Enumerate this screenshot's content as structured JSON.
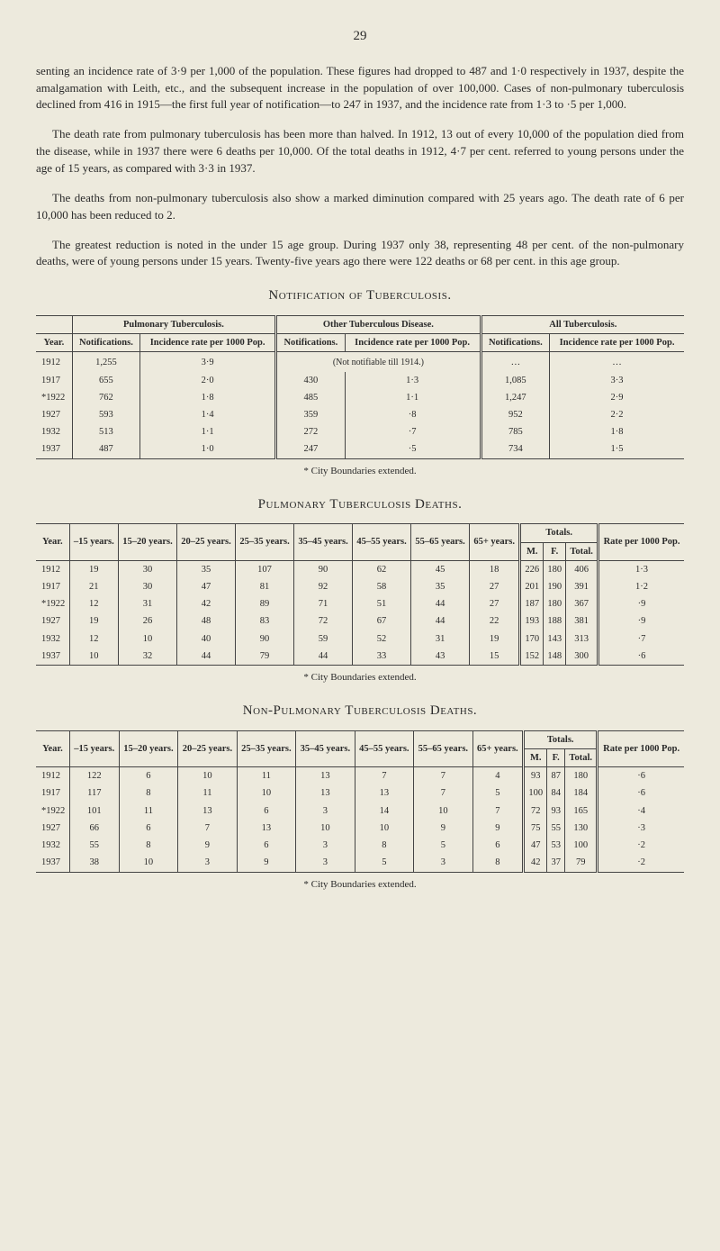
{
  "page_number": "29",
  "paragraphs": [
    "senting an incidence rate of 3·9 per 1,000 of the population. These figures had dropped to 487 and 1·0 respectively in 1937, despite the amalgamation with Leith, etc., and the subsequent increase in the population of over 100,000. Cases of non-pulmonary tuberculosis declined from 416 in 1915—the first full year of notification—to 247 in 1937, and the incidence rate from 1·3 to ·5 per 1,000.",
    "The death rate from pulmonary tuberculosis has been more than halved. In 1912, 13 out of every 10,000 of the population died from the disease, while in 1937 there were 6 deaths per 10,000. Of the total deaths in 1912, 4·7 per cent. referred to young persons under the age of 15 years, as compared with 3·3 in 1937.",
    "The deaths from non-pulmonary tuberculosis also show a marked diminution compared with 25 years ago. The death rate of 6 per 10,000 has been reduced to 2.",
    "The greatest reduction is noted in the under 15 age group. During 1937 only 38, representing 48 per cent. of the non-pulmonary deaths, were of young persons under 15 years. Twenty-five years ago there were 122 deaths or 68 per cent. in this age group."
  ],
  "table1": {
    "title": "Notification of Tuberculosis.",
    "group_headers": [
      "Pulmonary Tuberculosis.",
      "Other Tuberculous Disease.",
      "All Tuberculosis."
    ],
    "col_headers": [
      "Year.",
      "Notifications.",
      "Incidence rate per 1000 Pop.",
      "Notifications.",
      "Incidence rate per 1000 Pop.",
      "Notifications.",
      "Incidence rate per 1000 Pop."
    ],
    "not_notifiable": "(Not notifiable till 1914.)",
    "rows": [
      [
        "1912",
        "1,255",
        "3·9",
        "",
        "",
        "…",
        "…"
      ],
      [
        "1917",
        "655",
        "2·0",
        "430",
        "1·3",
        "1,085",
        "3·3"
      ],
      [
        "*1922",
        "762",
        "1·8",
        "485",
        "1·1",
        "1,247",
        "2·9"
      ],
      [
        "1927",
        "593",
        "1·4",
        "359",
        "·8",
        "952",
        "2·2"
      ],
      [
        "1932",
        "513",
        "1·1",
        "272",
        "·7",
        "785",
        "1·8"
      ],
      [
        "1937",
        "487",
        "1·0",
        "247",
        "·5",
        "734",
        "1·5"
      ]
    ],
    "footnote": "* City Boundaries extended."
  },
  "table2": {
    "title": "Pulmonary Tuberculosis Deaths.",
    "col_headers": [
      "Year.",
      "–15 years.",
      "15–20 years.",
      "20–25 years.",
      "25–35 years.",
      "35–45 years.",
      "45–55 years.",
      "55–65 years.",
      "65+ years."
    ],
    "totals_label": "Totals.",
    "totals_sub": [
      "M.",
      "F.",
      "Total."
    ],
    "rate_label": "Rate per 1000 Pop.",
    "rows": [
      [
        "1912",
        "19",
        "30",
        "35",
        "107",
        "90",
        "62",
        "45",
        "18",
        "226",
        "180",
        "406",
        "1·3"
      ],
      [
        "1917",
        "21",
        "30",
        "47",
        "81",
        "92",
        "58",
        "35",
        "27",
        "201",
        "190",
        "391",
        "1·2"
      ],
      [
        "*1922",
        "12",
        "31",
        "42",
        "89",
        "71",
        "51",
        "44",
        "27",
        "187",
        "180",
        "367",
        "·9"
      ],
      [
        "1927",
        "19",
        "26",
        "48",
        "83",
        "72",
        "67",
        "44",
        "22",
        "193",
        "188",
        "381",
        "·9"
      ],
      [
        "1932",
        "12",
        "10",
        "40",
        "90",
        "59",
        "52",
        "31",
        "19",
        "170",
        "143",
        "313",
        "·7"
      ],
      [
        "1937",
        "10",
        "32",
        "44",
        "79",
        "44",
        "33",
        "43",
        "15",
        "152",
        "148",
        "300",
        "·6"
      ]
    ],
    "footnote": "* City Boundaries extended."
  },
  "table3": {
    "title": "Non-Pulmonary Tuberculosis Deaths.",
    "col_headers": [
      "Year.",
      "–15 years.",
      "15–20 years.",
      "20–25 years.",
      "25–35 years.",
      "35–45 years.",
      "45–55 years.",
      "55–65 years.",
      "65+ years."
    ],
    "totals_label": "Totals.",
    "totals_sub": [
      "M.",
      "F.",
      "Total."
    ],
    "rate_label": "Rate per 1000 Pop.",
    "rows": [
      [
        "1912",
        "122",
        "6",
        "10",
        "11",
        "13",
        "7",
        "7",
        "4",
        "93",
        "87",
        "180",
        "·6"
      ],
      [
        "1917",
        "117",
        "8",
        "11",
        "10",
        "13",
        "13",
        "7",
        "5",
        "100",
        "84",
        "184",
        "·6"
      ],
      [
        "*1922",
        "101",
        "11",
        "13",
        "6",
        "3",
        "14",
        "10",
        "7",
        "72",
        "93",
        "165",
        "·4"
      ],
      [
        "1927",
        "66",
        "6",
        "7",
        "13",
        "10",
        "10",
        "9",
        "9",
        "75",
        "55",
        "130",
        "·3"
      ],
      [
        "1932",
        "55",
        "8",
        "9",
        "6",
        "3",
        "8",
        "5",
        "6",
        "47",
        "53",
        "100",
        "·2"
      ],
      [
        "1937",
        "38",
        "10",
        "3",
        "9",
        "3",
        "5",
        "3",
        "8",
        "42",
        "37",
        "79",
        "·2"
      ]
    ],
    "footnote": "* City Boundaries extended."
  }
}
